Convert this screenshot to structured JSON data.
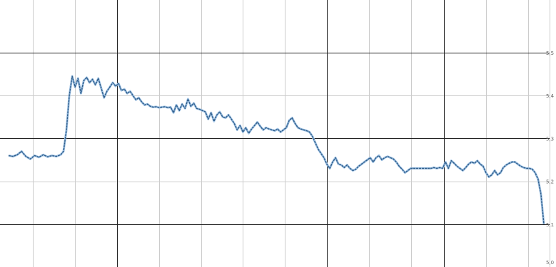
{
  "chart_data": {
    "type": "line",
    "title": "",
    "xlabel": "",
    "ylabel": "",
    "x_count": 370,
    "ylim": [
      0,
      5
    ],
    "y_axis_side": "right",
    "y_tick_values": [
      0,
      1,
      2,
      3,
      4,
      5
    ],
    "y_tick_labels": [
      "5,0",
      "5,1",
      "5,2",
      "5,3",
      "5,4",
      "5,5"
    ],
    "x_major_grid_at": [
      75,
      220,
      301
    ],
    "x_minor_grid_at": [
      17,
      46,
      104,
      133,
      162,
      191,
      249,
      278,
      330,
      359
    ],
    "grid": true,
    "legend": "none",
    "colors": {
      "line": "#2f5d8a",
      "highlight": "#9ec1e3",
      "major_grid": "#222222",
      "minor_grid": "#cccccc"
    },
    "series": [
      {
        "points": [
          [
            0,
            2.6
          ],
          [
            3,
            2.58
          ],
          [
            6,
            2.62
          ],
          [
            9,
            2.7
          ],
          [
            12,
            2.58
          ],
          [
            15,
            2.52
          ],
          [
            18,
            2.6
          ],
          [
            21,
            2.56
          ],
          [
            24,
            2.62
          ],
          [
            27,
            2.57
          ],
          [
            30,
            2.6
          ],
          [
            33,
            2.58
          ],
          [
            36,
            2.62
          ],
          [
            38,
            2.7
          ],
          [
            40,
            3.2
          ],
          [
            42,
            4.0
          ],
          [
            44,
            4.45
          ],
          [
            46,
            4.2
          ],
          [
            48,
            4.4
          ],
          [
            50,
            4.05
          ],
          [
            52,
            4.35
          ],
          [
            54,
            4.42
          ],
          [
            56,
            4.3
          ],
          [
            58,
            4.38
          ],
          [
            60,
            4.25
          ],
          [
            62,
            4.4
          ],
          [
            64,
            4.18
          ],
          [
            66,
            3.95
          ],
          [
            68,
            4.1
          ],
          [
            70,
            4.2
          ],
          [
            72,
            4.3
          ],
          [
            74,
            4.22
          ],
          [
            76,
            4.28
          ],
          [
            78,
            4.12
          ],
          [
            80,
            4.15
          ],
          [
            82,
            4.05
          ],
          [
            84,
            4.1
          ],
          [
            86,
            4.0
          ],
          [
            88,
            3.9
          ],
          [
            90,
            3.95
          ],
          [
            92,
            3.85
          ],
          [
            94,
            3.78
          ],
          [
            96,
            3.8
          ],
          [
            98,
            3.75
          ],
          [
            100,
            3.73
          ],
          [
            102,
            3.74
          ],
          [
            104,
            3.72
          ],
          [
            106,
            3.73
          ],
          [
            108,
            3.74
          ],
          [
            110,
            3.72
          ],
          [
            112,
            3.73
          ],
          [
            114,
            3.6
          ],
          [
            116,
            3.78
          ],
          [
            118,
            3.65
          ],
          [
            120,
            3.8
          ],
          [
            122,
            3.7
          ],
          [
            124,
            3.92
          ],
          [
            126,
            3.75
          ],
          [
            128,
            3.82
          ],
          [
            130,
            3.7
          ],
          [
            132,
            3.68
          ],
          [
            134,
            3.65
          ],
          [
            136,
            3.62
          ],
          [
            138,
            3.45
          ],
          [
            140,
            3.6
          ],
          [
            142,
            3.4
          ],
          [
            144,
            3.55
          ],
          [
            146,
            3.62
          ],
          [
            148,
            3.5
          ],
          [
            150,
            3.48
          ],
          [
            152,
            3.55
          ],
          [
            154,
            3.45
          ],
          [
            156,
            3.35
          ],
          [
            158,
            3.2
          ],
          [
            160,
            3.3
          ],
          [
            162,
            3.15
          ],
          [
            164,
            3.25
          ],
          [
            166,
            3.12
          ],
          [
            168,
            3.22
          ],
          [
            170,
            3.3
          ],
          [
            172,
            3.38
          ],
          [
            174,
            3.28
          ],
          [
            176,
            3.2
          ],
          [
            178,
            3.25
          ],
          [
            180,
            3.22
          ],
          [
            182,
            3.2
          ],
          [
            184,
            3.18
          ],
          [
            186,
            3.22
          ],
          [
            188,
            3.15
          ],
          [
            190,
            3.2
          ],
          [
            192,
            3.25
          ],
          [
            194,
            3.42
          ],
          [
            196,
            3.48
          ],
          [
            198,
            3.35
          ],
          [
            200,
            3.25
          ],
          [
            202,
            3.22
          ],
          [
            204,
            3.2
          ],
          [
            206,
            3.18
          ],
          [
            208,
            3.15
          ],
          [
            210,
            3.05
          ],
          [
            212,
            2.9
          ],
          [
            214,
            2.75
          ],
          [
            216,
            2.65
          ],
          [
            218,
            2.55
          ],
          [
            220,
            2.4
          ],
          [
            222,
            2.3
          ],
          [
            224,
            2.45
          ],
          [
            226,
            2.55
          ],
          [
            228,
            2.4
          ],
          [
            230,
            2.38
          ],
          [
            232,
            2.32
          ],
          [
            234,
            2.38
          ],
          [
            236,
            2.3
          ],
          [
            238,
            2.25
          ],
          [
            240,
            2.28
          ],
          [
            242,
            2.35
          ],
          [
            244,
            2.4
          ],
          [
            246,
            2.45
          ],
          [
            248,
            2.5
          ],
          [
            250,
            2.55
          ],
          [
            252,
            2.45
          ],
          [
            254,
            2.55
          ],
          [
            256,
            2.6
          ],
          [
            258,
            2.5
          ],
          [
            260,
            2.55
          ],
          [
            262,
            2.58
          ],
          [
            264,
            2.55
          ],
          [
            266,
            2.52
          ],
          [
            268,
            2.45
          ],
          [
            270,
            2.35
          ],
          [
            272,
            2.28
          ],
          [
            274,
            2.2
          ],
          [
            276,
            2.25
          ],
          [
            278,
            2.3
          ],
          [
            280,
            2.3
          ],
          [
            282,
            2.3
          ],
          [
            284,
            2.3
          ],
          [
            286,
            2.3
          ],
          [
            288,
            2.3
          ],
          [
            290,
            2.3
          ],
          [
            292,
            2.3
          ],
          [
            294,
            2.32
          ],
          [
            296,
            2.3
          ],
          [
            298,
            2.32
          ],
          [
            300,
            2.3
          ],
          [
            302,
            2.45
          ],
          [
            304,
            2.3
          ],
          [
            306,
            2.48
          ],
          [
            308,
            2.42
          ],
          [
            310,
            2.35
          ],
          [
            312,
            2.3
          ],
          [
            314,
            2.25
          ],
          [
            316,
            2.32
          ],
          [
            318,
            2.4
          ],
          [
            320,
            2.45
          ],
          [
            322,
            2.42
          ],
          [
            324,
            2.48
          ],
          [
            326,
            2.4
          ],
          [
            328,
            2.35
          ],
          [
            330,
            2.2
          ],
          [
            332,
            2.1
          ],
          [
            334,
            2.15
          ],
          [
            336,
            2.25
          ],
          [
            338,
            2.15
          ],
          [
            340,
            2.2
          ],
          [
            342,
            2.32
          ],
          [
            344,
            2.38
          ],
          [
            346,
            2.42
          ],
          [
            348,
            2.45
          ],
          [
            350,
            2.45
          ],
          [
            352,
            2.4
          ],
          [
            354,
            2.35
          ],
          [
            356,
            2.32
          ],
          [
            358,
            2.3
          ],
          [
            360,
            2.3
          ],
          [
            362,
            2.28
          ],
          [
            364,
            2.2
          ],
          [
            366,
            2.05
          ],
          [
            368,
            1.7
          ],
          [
            370,
            1.0
          ]
        ]
      }
    ]
  }
}
